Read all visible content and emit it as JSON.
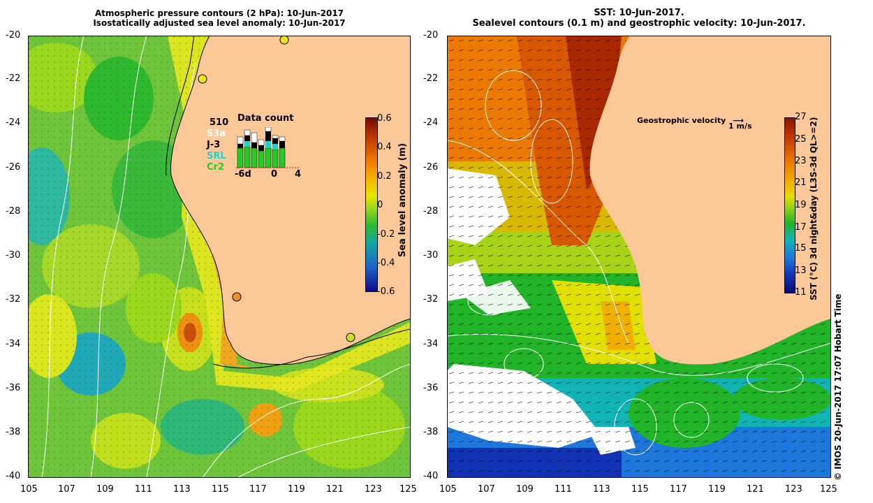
{
  "left_panel": {
    "title_line1": "Atmospheric pressure contours (2 hPa): 10-Jun-2017",
    "title_line2": "Isostatically adjusted sea level anomaly: 10-Jun-2017",
    "x_ticks": [
      "105",
      "107",
      "109",
      "111",
      "113",
      "115",
      "117",
      "119",
      "121",
      "123",
      "125"
    ],
    "y_ticks": [
      "-20",
      "-22",
      "-24",
      "-26",
      "-28",
      "-30",
      "-32",
      "-34",
      "-36",
      "-38",
      "-40"
    ],
    "colorbar": {
      "label": "Sea level anomaly (m)",
      "ticks": [
        "0.6",
        "0.4",
        "0.2",
        "0",
        "-0.2",
        "-0.4",
        "-0.6"
      ]
    },
    "data_count": {
      "title": "Data count",
      "total": "510",
      "missions": [
        {
          "name": "S3a",
          "color": "#ffffff"
        },
        {
          "name": "J-3",
          "color": "#000000"
        },
        {
          "name": "SRL",
          "color": "#22d0d0"
        },
        {
          "name": "Cr2",
          "color": "#22cc22"
        }
      ],
      "x_labels": [
        "-6d",
        "0",
        "4"
      ]
    }
  },
  "right_panel": {
    "title_line1": "SST: 10-Jun-2017.",
    "title_line2": "Sealevel contours (0.1 m) and geostrophic velocity: 10-Jun-2017.",
    "x_ticks": [
      "105",
      "107",
      "109",
      "111",
      "113",
      "115",
      "117",
      "119",
      "121",
      "123",
      "125"
    ],
    "y_ticks": [
      "-20",
      "-22",
      "-24",
      "-26",
      "-28",
      "-30",
      "-32",
      "-34",
      "-36",
      "-38",
      "-40"
    ],
    "velocity_legend": "Geostrophic velocity",
    "velocity_scale": "1 m/s",
    "colorbar": {
      "label": "SST (°C) 3d night&day (L3S-3d QL>=2)",
      "ticks": [
        "27",
        "25",
        "23",
        "21",
        "19",
        "17",
        "15",
        "13",
        "11"
      ]
    },
    "credit": "© IMOS 20-Jun-2017 17:07 Hobart Time"
  },
  "colors": {
    "land": "#fcc898",
    "sla_scale": [
      "#7a0a00",
      "#c23c00",
      "#f07a00",
      "#f5b400",
      "#e8e800",
      "#9ad81e",
      "#2eb82e",
      "#12a8a0",
      "#1e64c8",
      "#0a0a8c"
    ],
    "sst_scale": [
      "#8a1400",
      "#c83c00",
      "#ec7a00",
      "#f2b000",
      "#e2e000",
      "#8cd220",
      "#22b428",
      "#10b4b4",
      "#1e78dc",
      "#1232b4",
      "#0a0a78"
    ]
  }
}
